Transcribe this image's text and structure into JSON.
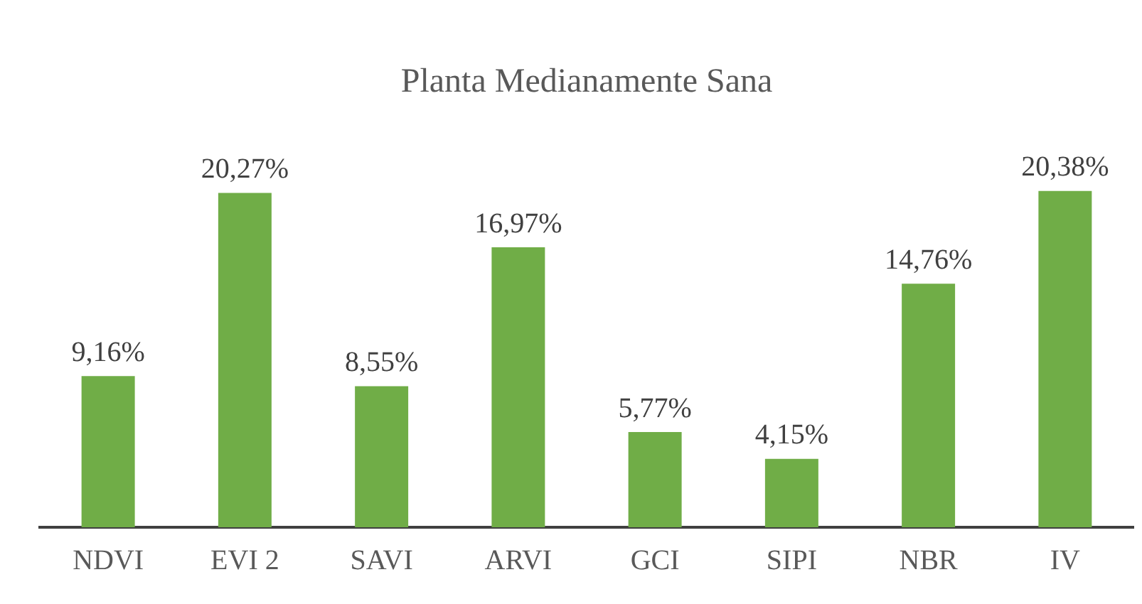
{
  "chart_data": {
    "type": "bar",
    "title": "Planta Medianamente Sana",
    "categories": [
      "NDVI",
      "EVI 2",
      "SAVI",
      "ARVI",
      "GCI",
      "SIPI",
      "NBR",
      "IV"
    ],
    "values": [
      9.16,
      20.27,
      8.55,
      16.97,
      5.77,
      4.15,
      14.76,
      20.38
    ],
    "value_labels": [
      "9,16%",
      "20,27%",
      "8,55%",
      "16,97%",
      "5,77%",
      "4,15%",
      "14,76%",
      "20,38%"
    ],
    "color": "#70ad47",
    "grid": false,
    "legend": false
  }
}
